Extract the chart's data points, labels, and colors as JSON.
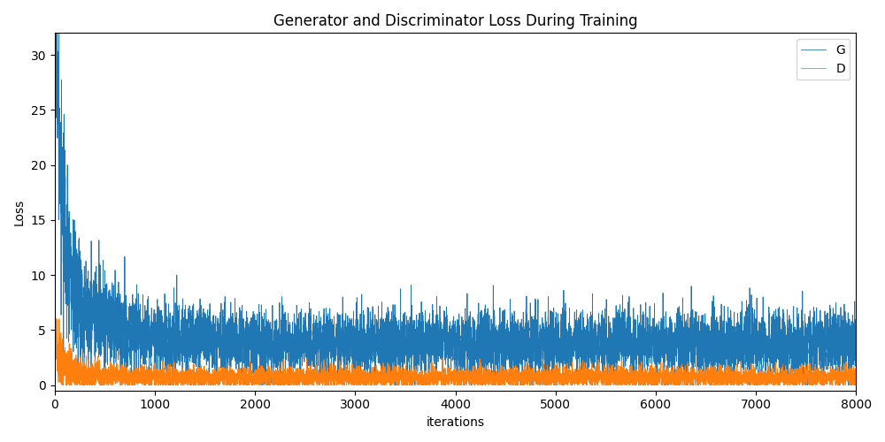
{
  "title": "Generator and Discriminator Loss During Training",
  "xlabel": "iterations",
  "ylabel": "Loss",
  "xlim": [
    0,
    8000
  ],
  "ylim": [
    -0.5,
    32
  ],
  "yticks": [
    0,
    5,
    10,
    15,
    20,
    25,
    30
  ],
  "xticks": [
    0,
    1000,
    2000,
    3000,
    4000,
    5000,
    6000,
    7000,
    8000
  ],
  "g_color": "#1f77b4",
  "d_color": "#ff7f0e",
  "g_label": "G",
  "d_label": "D",
  "linewidth": 0.6,
  "n_points": 8000,
  "figsize": [
    10,
    5
  ],
  "dpi": 100,
  "legend_loc": "upper right",
  "background_color": "#ffffff"
}
